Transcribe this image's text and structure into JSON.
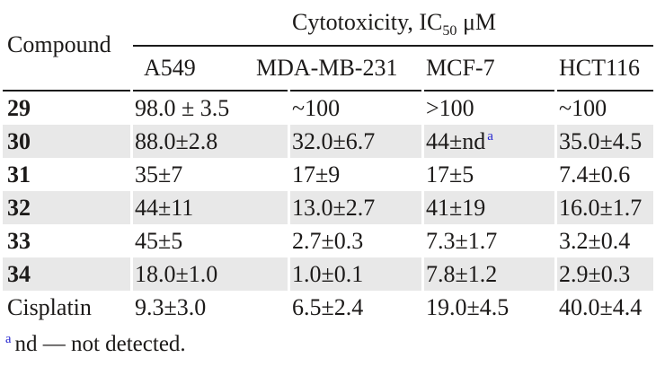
{
  "colors": {
    "text": "#1c1a19",
    "rule": "#1a1a1a",
    "shaded_row_bg": "#e8e8e8",
    "footnote_marker_blue": "#2222cf",
    "background": "#ffffff"
  },
  "header": {
    "compound_label": "Compound",
    "span_title_prefix": "Cytotoxicity, IC",
    "span_title_sub": "50",
    "span_title_suffix": " μM",
    "columns": [
      "A549",
      "MDA-MB-231",
      "MCF-7",
      "HCT116"
    ]
  },
  "rows": [
    {
      "compound": "29",
      "bold": true,
      "shaded": false,
      "cells": [
        "98.0 ± 3.5",
        "~100",
        ">100",
        "~100"
      ]
    },
    {
      "compound": "30",
      "bold": true,
      "shaded": true,
      "cells": [
        "88.0±2.8",
        "32.0±6.7",
        "44±nd^a",
        "35.0±4.5"
      ]
    },
    {
      "compound": "31",
      "bold": true,
      "shaded": false,
      "cells": [
        "35±7",
        "17±9",
        "17±5",
        "7.4±0.6"
      ]
    },
    {
      "compound": "32",
      "bold": true,
      "shaded": true,
      "cells": [
        "44±11",
        "13.0±2.7",
        "41±19",
        "16.0±1.7"
      ]
    },
    {
      "compound": "33",
      "bold": true,
      "shaded": false,
      "cells": [
        "45±5",
        "2.7±0.3",
        "7.3±1.7",
        "3.2±0.4"
      ]
    },
    {
      "compound": "34",
      "bold": true,
      "shaded": true,
      "cells": [
        "18.0±1.0",
        "1.0±0.1",
        "7.8±1.2",
        "2.9±0.3"
      ]
    },
    {
      "compound": "Cisplatin",
      "bold": false,
      "shaded": false,
      "cells": [
        "9.3±3.0",
        "6.5±2.4",
        "19.0±4.5",
        "40.0±4.4"
      ]
    }
  ],
  "footnote": {
    "marker": "a",
    "text": "nd — not detected."
  }
}
